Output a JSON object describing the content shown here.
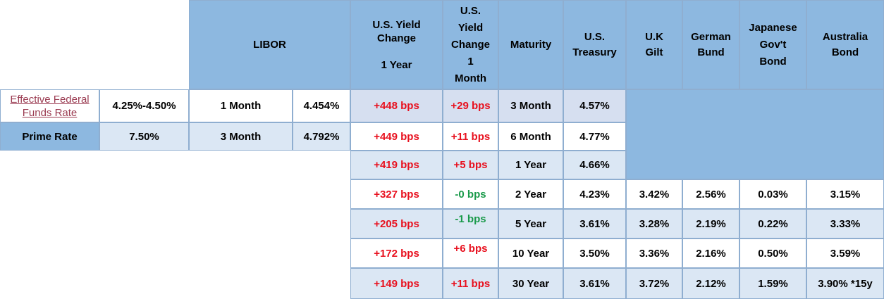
{
  "header": {
    "libor": "LIBOR",
    "yield_1y_lines": [
      "U.S. Yield",
      "Change",
      "",
      "1 Year"
    ],
    "yield_1m_lines": [
      "U.S.",
      "Yield",
      "Change",
      "1",
      "Month"
    ],
    "maturity": "Maturity",
    "us_treasury_lines": [
      "U.S.",
      "Treasury"
    ],
    "uk_gilt_lines": [
      "U.K",
      "Gilt"
    ],
    "german_bund_lines": [
      "German",
      "Bund"
    ],
    "japanese_lines": [
      "Japanese",
      "Gov't",
      "Bond"
    ],
    "australia_lines": [
      "Australia",
      "Bond"
    ]
  },
  "rates": [
    {
      "label_lines": [
        "Effective Federal",
        "Funds Rate"
      ],
      "value": "4.25%-4.50%",
      "libor_term": "1 Month",
      "libor_value": "4.454%"
    },
    {
      "label": "Prime Rate",
      "value": "7.50%",
      "libor_term": "3 Month",
      "libor_value": "4.792%"
    }
  ],
  "rows": [
    {
      "y1": "+448 bps",
      "y1m": "+29 bps",
      "y1m_color": "red",
      "maturity": "3 Month",
      "ust": "4.57%"
    },
    {
      "y1": "+449 bps",
      "y1m": "+11 bps",
      "y1m_color": "red",
      "maturity": "6 Month",
      "ust": "4.77%"
    },
    {
      "y1": "+419 bps",
      "y1m": "+5 bps",
      "y1m_color": "red",
      "maturity": "1 Year",
      "ust": "4.66%"
    },
    {
      "y1": "+327 bps",
      "y1m": "-0 bps",
      "y1m_color": "green",
      "maturity": "2 Year",
      "ust": "4.23%",
      "uk": "3.42%",
      "de": "2.56%",
      "jp": "0.03%",
      "au": "3.15%"
    },
    {
      "y1": "+205 bps",
      "y1m": "-1 bps",
      "y1m_color": "green",
      "maturity": "5 Year",
      "ust": "3.61%",
      "uk": "3.28%",
      "de": "2.19%",
      "jp": "0.22%",
      "au": "3.33%"
    },
    {
      "y1": "+172 bps",
      "y1m": "+6 bps",
      "y1m_color": "red",
      "maturity": "10 Year",
      "ust": "3.50%",
      "uk": "3.36%",
      "de": "2.16%",
      "jp": "0.50%",
      "au": "3.59%"
    },
    {
      "y1": "+149 bps",
      "y1m": "+11 bps",
      "y1m_color": "red",
      "maturity": "30 Year",
      "ust": "3.61%",
      "uk": "3.72%",
      "de": "2.12%",
      "jp": "1.59%",
      "au": "3.90% *15y"
    }
  ]
}
